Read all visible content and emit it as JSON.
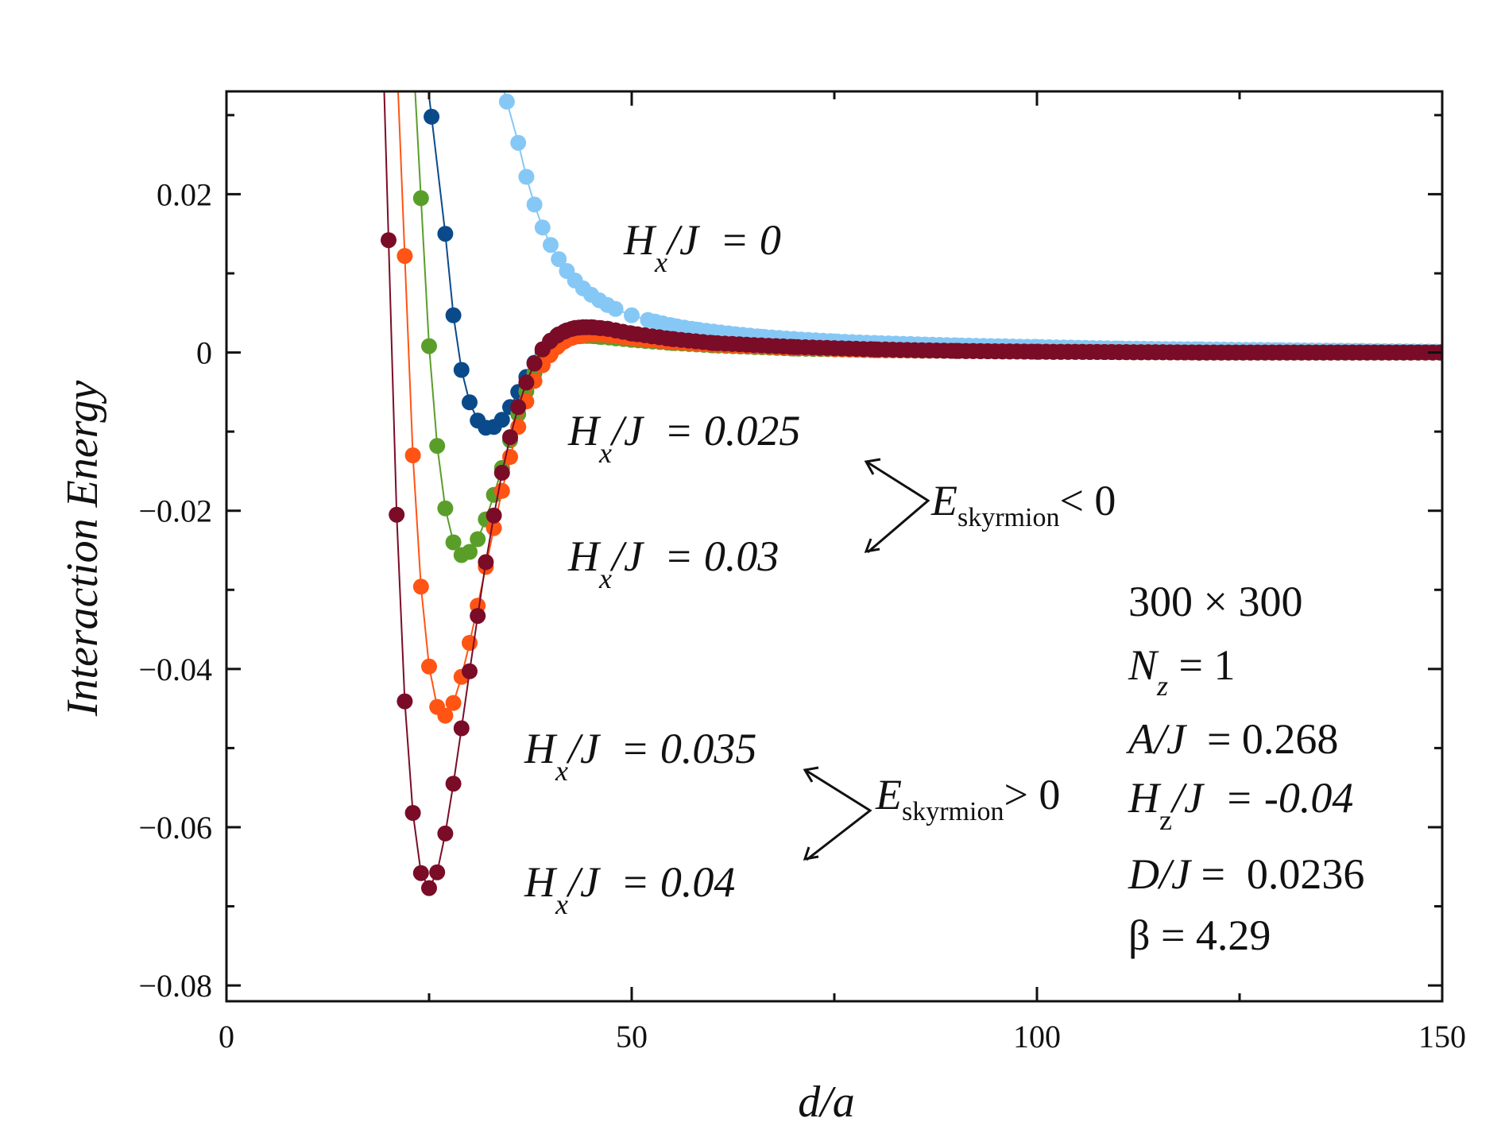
{
  "chart_data": {
    "type": "scatter",
    "xlabel": "d/a",
    "ylabel": "Interaction Energy",
    "xlim": [
      0,
      150
    ],
    "ylim": [
      -0.082,
      0.033
    ],
    "xticks": [
      0,
      50,
      100,
      150
    ],
    "xtick_labels": [
      "0",
      "50",
      "100",
      "150"
    ],
    "yticks": [
      0.02,
      0,
      -0.02,
      -0.04,
      -0.06,
      -0.08
    ],
    "ytick_labels": [
      "0.02",
      "0",
      "−0.02",
      "−0.04",
      "−0.06",
      "−0.08"
    ],
    "series": [
      {
        "name": "H_x/J = 0",
        "color": "#86c8f5",
        "x": [
          34.6,
          36,
          37,
          38,
          39,
          40,
          41,
          42,
          43,
          44,
          45,
          46,
          47,
          48,
          50,
          52,
          55,
          58,
          62,
          66,
          70,
          75,
          80,
          90,
          100,
          110,
          120,
          130,
          140,
          150
        ],
        "y": [
          0.0317,
          0.0265,
          0.0222,
          0.0187,
          0.0158,
          0.0136,
          0.0118,
          0.0103,
          0.0091,
          0.0081,
          0.0073,
          0.0066,
          0.006,
          0.0055,
          0.0047,
          0.0041,
          0.0034,
          0.0029,
          0.0024,
          0.002,
          0.0017,
          0.0014,
          0.0012,
          0.0009,
          0.0007,
          0.0005,
          0.0004,
          0.0003,
          0.0002,
          0.0001
        ]
      },
      {
        "name": "H_x/J = 0.025",
        "color": "#0a4a8a",
        "x": [
          25.3,
          27,
          28,
          29,
          30,
          31,
          32,
          33,
          34,
          35,
          36,
          37,
          38,
          39,
          40,
          42,
          44,
          46,
          48,
          50,
          55,
          60,
          70,
          80,
          90,
          100,
          120,
          150
        ],
        "y": [
          0.0298,
          0.015,
          0.0047,
          -0.0022,
          -0.0063,
          -0.0086,
          -0.0095,
          -0.0094,
          -0.0085,
          -0.0069,
          -0.005,
          -0.0031,
          -0.0013,
          0.0001,
          0.0011,
          0.0021,
          0.0025,
          0.0025,
          0.0023,
          0.002,
          0.0014,
          0.001,
          0.0006,
          0.0003,
          0.0002,
          0.0001,
          0.0,
          0.0
        ]
      },
      {
        "name": "H_x/J = 0.03",
        "color": "#5a9e2a",
        "x": [
          24,
          25,
          26,
          27,
          28,
          29,
          30,
          31,
          32,
          33,
          34,
          35,
          36,
          37,
          38,
          39,
          40,
          41,
          42,
          43,
          44,
          45,
          46,
          48,
          50,
          55,
          60,
          70,
          80,
          90,
          100,
          120,
          150
        ],
        "y": [
          0.0195,
          0.0008,
          -0.0118,
          -0.0197,
          -0.024,
          -0.0256,
          -0.0252,
          -0.0236,
          -0.0211,
          -0.018,
          -0.0146,
          -0.0111,
          -0.0078,
          -0.0049,
          -0.0026,
          -0.0008,
          0.0004,
          0.0012,
          0.0017,
          0.002,
          0.0021,
          0.0021,
          0.002,
          0.0018,
          0.0016,
          0.0012,
          0.0009,
          0.0005,
          0.0003,
          0.0002,
          0.0001,
          0.0,
          0.0
        ]
      },
      {
        "name": "H_x/J = 0.035",
        "color": "#ff5414",
        "x": [
          22,
          23,
          24,
          25,
          26,
          27,
          28,
          29,
          30,
          31,
          32,
          33,
          34,
          35,
          36,
          37,
          38,
          39,
          40,
          41,
          42,
          43,
          44,
          45,
          46,
          48,
          50,
          55,
          60,
          70,
          80,
          90,
          100,
          120,
          150
        ],
        "y": [
          0.0122,
          -0.013,
          -0.0296,
          -0.0397,
          -0.0448,
          -0.0459,
          -0.0443,
          -0.041,
          -0.0367,
          -0.032,
          -0.0271,
          -0.0222,
          -0.0175,
          -0.0132,
          -0.0094,
          -0.0062,
          -0.0036,
          -0.0016,
          -0.0002,
          0.0009,
          0.0016,
          0.002,
          0.0022,
          0.0023,
          0.0023,
          0.0021,
          0.0018,
          0.0013,
          0.001,
          0.0006,
          0.0003,
          0.0002,
          0.0001,
          0.0,
          0.0
        ]
      },
      {
        "name": "H_x/J = 0.04",
        "color": "#7a0c28",
        "x": [
          20,
          21,
          22,
          23,
          24,
          25,
          26,
          27,
          28,
          29,
          30,
          31,
          32,
          33,
          34,
          35,
          36,
          37,
          38,
          39,
          40,
          41,
          42,
          43,
          44,
          45,
          46,
          47,
          48,
          50,
          55,
          60,
          70,
          80,
          90,
          100,
          120,
          150
        ],
        "y": [
          0.0142,
          -0.0205,
          -0.0441,
          -0.0582,
          -0.0658,
          -0.0677,
          -0.0657,
          -0.0608,
          -0.0545,
          -0.0475,
          -0.0403,
          -0.0333,
          -0.0265,
          -0.0206,
          -0.0152,
          -0.0107,
          -0.0069,
          -0.0038,
          -0.0014,
          0.0004,
          0.0015,
          0.0023,
          0.0028,
          0.0031,
          0.0032,
          0.0032,
          0.0031,
          0.003,
          0.0028,
          0.0024,
          0.0017,
          0.0012,
          0.0007,
          0.0004,
          0.0002,
          0.0001,
          0.0,
          0.0
        ]
      }
    ],
    "annotations": {
      "curve_labels": [
        {
          "main": "H",
          "sub": "x",
          "rest": "/J  = 0"
        },
        {
          "main": "H",
          "sub": "x",
          "rest": "/J  = 0.025"
        },
        {
          "main": "H",
          "sub": "x",
          "rest": "/J  = 0.03"
        },
        {
          "main": "H",
          "sub": "x",
          "rest": "/J  = 0.035"
        },
        {
          "main": "H",
          "sub": "x",
          "rest": "/J  = 0.04"
        }
      ],
      "energy_neg": {
        "main": "E",
        "sub": "skyrmion",
        "rest": "< 0"
      },
      "energy_pos": {
        "main": "E",
        "sub": "skyrmion",
        "rest": "> 0"
      },
      "params": {
        "lattice": "300 × 300",
        "nz": {
          "main": "N",
          "sub": "z",
          "rest": " = 1"
        },
        "aj": {
          "main": "A/J",
          "rest": "  = 0.268"
        },
        "hz": {
          "main": "H",
          "sub": "z",
          "rest": "/J  = -0.04"
        },
        "dj": {
          "main": "D/J",
          "rest": " =  0.0236"
        },
        "beta": "β = 4.29"
      }
    }
  }
}
